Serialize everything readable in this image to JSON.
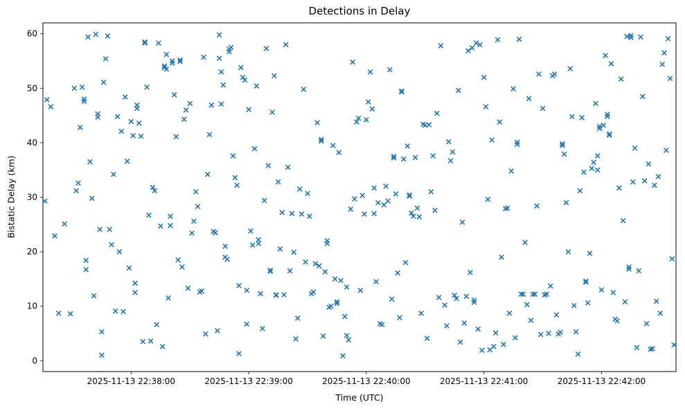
{
  "chart_data": {
    "type": "scatter",
    "title": "Detections in Delay",
    "xlabel": "Time (UTC)",
    "ylabel": "Bistatic Delay (km)",
    "marker": "x",
    "marker_color": "#1f77b4",
    "axis_color": "#000000",
    "background": "#ffffff",
    "grid": false,
    "legend": "none",
    "x_unit": "seconds after 2025-11-13 22:38:00",
    "xlim": [
      -45,
      278
    ],
    "ylim": [
      -2,
      62
    ],
    "x_ticks": [
      {
        "t": 0,
        "label": "2025-11-13 22:38:00"
      },
      {
        "t": 60,
        "label": "2025-11-13 22:39:00"
      },
      {
        "t": 120,
        "label": "2025-11-13 22:40:00"
      },
      {
        "t": 180,
        "label": "2025-11-13 22:41:00"
      },
      {
        "t": 240,
        "label": "2025-11-13 22:42:00"
      }
    ],
    "y_ticks": [
      0,
      10,
      20,
      30,
      40,
      50,
      60
    ],
    "points": [
      [
        -44,
        29.3
      ],
      [
        -43,
        47.9
      ],
      [
        -41,
        46.6
      ],
      [
        -39,
        22.9
      ],
      [
        -37,
        8.7
      ],
      [
        -34,
        25.1
      ],
      [
        -31,
        8.6
      ],
      [
        -29,
        50.0
      ],
      [
        -28,
        31.2
      ],
      [
        -27,
        32.6
      ],
      [
        -26,
        42.8
      ],
      [
        -25,
        50.2
      ],
      [
        -24,
        48.0
      ],
      [
        -24,
        47.6
      ],
      [
        -23,
        18.4
      ],
      [
        -23,
        16.7
      ],
      [
        -22,
        59.4
      ],
      [
        -21,
        36.5
      ],
      [
        -20,
        29.8
      ],
      [
        -19,
        11.9
      ],
      [
        -18,
        59.9
      ],
      [
        -17,
        45.3
      ],
      [
        -17,
        44.7
      ],
      [
        -16,
        24.1
      ],
      [
        -15,
        5.3
      ],
      [
        -15,
        1.0
      ],
      [
        -14,
        51.1
      ],
      [
        -13,
        55.4
      ],
      [
        -12,
        59.6
      ],
      [
        -11,
        24.1
      ],
      [
        -10,
        21.3
      ],
      [
        -9,
        34.2
      ],
      [
        -8,
        9.1
      ],
      [
        -7,
        44.8
      ],
      [
        -6,
        20.0
      ],
      [
        -5,
        42.1
      ],
      [
        -4,
        9.0
      ],
      [
        -3,
        48.4
      ],
      [
        -2,
        36.6
      ],
      [
        -1,
        17.0
      ],
      [
        0,
        43.9
      ],
      [
        1,
        41.3
      ],
      [
        2,
        12.5
      ],
      [
        2,
        14.2
      ],
      [
        3,
        46.9
      ],
      [
        3,
        46.3
      ],
      [
        4,
        43.6
      ],
      [
        5,
        41.2
      ],
      [
        6,
        3.5
      ],
      [
        7,
        58.5
      ],
      [
        7,
        58.3
      ],
      [
        8,
        50.2
      ],
      [
        9,
        26.7
      ],
      [
        10,
        3.6
      ],
      [
        11,
        31.8
      ],
      [
        12,
        31.2
      ],
      [
        13,
        6.6
      ],
      [
        14,
        58.3
      ],
      [
        15,
        24.7
      ],
      [
        16,
        2.6
      ],
      [
        17,
        53.8
      ],
      [
        17,
        54.1
      ],
      [
        18,
        56.2
      ],
      [
        18,
        53.5
      ],
      [
        19,
        11.5
      ],
      [
        20,
        26.5
      ],
      [
        20,
        24.8
      ],
      [
        21,
        55.0
      ],
      [
        21,
        54.6
      ],
      [
        22,
        48.8
      ],
      [
        23,
        41.1
      ],
      [
        24,
        18.5
      ],
      [
        25,
        55.2
      ],
      [
        25,
        54.9
      ],
      [
        26,
        17.2
      ],
      [
        27,
        44.3
      ],
      [
        28,
        46.0
      ],
      [
        29,
        13.3
      ],
      [
        30,
        47.2
      ],
      [
        31,
        23.4
      ],
      [
        32,
        25.6
      ],
      [
        33,
        31.0
      ],
      [
        34,
        28.3
      ],
      [
        35,
        12.6
      ],
      [
        36,
        12.8
      ],
      [
        37,
        55.7
      ],
      [
        38,
        4.9
      ],
      [
        39,
        34.2
      ],
      [
        40,
        41.5
      ],
      [
        41,
        46.9
      ],
      [
        42,
        23.7
      ],
      [
        43,
        23.5
      ],
      [
        44,
        5.5
      ],
      [
        45,
        59.8
      ],
      [
        45,
        55.5
      ],
      [
        46,
        53.0
      ],
      [
        46,
        47.1
      ],
      [
        47,
        50.6
      ],
      [
        48,
        21.0
      ],
      [
        48,
        19.0
      ],
      [
        49,
        18.6
      ],
      [
        50,
        57.2
      ],
      [
        50,
        56.7
      ],
      [
        51,
        57.5
      ],
      [
        52,
        37.6
      ],
      [
        53,
        33.6
      ],
      [
        54,
        32.2
      ],
      [
        55,
        13.8
      ],
      [
        55,
        1.3
      ],
      [
        56,
        53.8
      ],
      [
        57,
        52.0
      ],
      [
        58,
        51.5
      ],
      [
        59,
        6.7
      ],
      [
        59,
        12.9
      ],
      [
        60,
        46.1
      ],
      [
        61,
        23.8
      ],
      [
        62,
        21.2
      ],
      [
        63,
        38.9
      ],
      [
        64,
        50.4
      ],
      [
        65,
        21.5
      ],
      [
        65,
        22.2
      ],
      [
        66,
        12.3
      ],
      [
        67,
        5.9
      ],
      [
        68,
        29.4
      ],
      [
        69,
        57.3
      ],
      [
        70,
        35.8
      ],
      [
        71,
        16.4
      ],
      [
        71,
        16.6
      ],
      [
        72,
        45.6
      ],
      [
        73,
        52.3
      ],
      [
        74,
        12.1
      ],
      [
        74,
        12.0
      ],
      [
        75,
        32.8
      ],
      [
        76,
        20.5
      ],
      [
        77,
        27.2
      ],
      [
        78,
        12.1
      ],
      [
        79,
        58.0
      ],
      [
        80,
        35.5
      ],
      [
        81,
        16.5
      ],
      [
        82,
        27.0
      ],
      [
        83,
        19.9
      ],
      [
        84,
        4.0
      ],
      [
        85,
        7.8
      ],
      [
        86,
        31.5
      ],
      [
        87,
        26.9
      ],
      [
        88,
        49.8
      ],
      [
        89,
        18.1
      ],
      [
        90,
        30.7
      ],
      [
        91,
        26.5
      ],
      [
        92,
        12.3
      ],
      [
        93,
        12.6
      ],
      [
        94,
        17.8
      ],
      [
        95,
        43.7
      ],
      [
        96,
        17.4
      ],
      [
        97,
        40.6
      ],
      [
        97,
        40.3
      ],
      [
        98,
        4.5
      ],
      [
        99,
        16.3
      ],
      [
        100,
        21.5
      ],
      [
        100,
        22.0
      ],
      [
        101,
        9.8
      ],
      [
        102,
        10.0
      ],
      [
        103,
        39.5
      ],
      [
        104,
        15.0
      ],
      [
        105,
        10.5
      ],
      [
        105,
        10.8
      ],
      [
        106,
        38.2
      ],
      [
        107,
        14.7
      ],
      [
        108,
        0.9
      ],
      [
        109,
        8.1
      ],
      [
        110,
        13.5
      ],
      [
        110,
        4.6
      ],
      [
        111,
        3.8
      ],
      [
        112,
        27.8
      ],
      [
        113,
        54.8
      ],
      [
        114,
        29.7
      ],
      [
        115,
        43.8
      ],
      [
        116,
        44.5
      ],
      [
        117,
        12.9
      ],
      [
        118,
        30.3
      ],
      [
        119,
        26.9
      ],
      [
        120,
        44.2
      ],
      [
        121,
        47.5
      ],
      [
        122,
        53.0
      ],
      [
        123,
        46.2
      ],
      [
        124,
        31.7
      ],
      [
        124,
        27.0
      ],
      [
        125,
        14.5
      ],
      [
        126,
        29.0
      ],
      [
        127,
        6.8
      ],
      [
        128,
        6.6
      ],
      [
        129,
        28.6
      ],
      [
        130,
        32.0
      ],
      [
        131,
        29.3
      ],
      [
        132,
        53.4
      ],
      [
        133,
        11.3
      ],
      [
        134,
        37.5
      ],
      [
        134,
        37.2
      ],
      [
        135,
        30.6
      ],
      [
        136,
        16.1
      ],
      [
        137,
        7.9
      ],
      [
        138,
        49.3
      ],
      [
        138,
        49.5
      ],
      [
        139,
        37.0
      ],
      [
        140,
        18.0
      ],
      [
        141,
        39.4
      ],
      [
        142,
        30.4
      ],
      [
        142,
        30.2
      ],
      [
        143,
        27.1
      ],
      [
        144,
        26.5
      ],
      [
        145,
        37.3
      ],
      [
        146,
        28.0
      ],
      [
        147,
        26.4
      ],
      [
        148,
        8.7
      ],
      [
        149,
        43.4
      ],
      [
        150,
        43.2
      ],
      [
        151,
        4.1
      ],
      [
        152,
        43.3
      ],
      [
        153,
        31.0
      ],
      [
        154,
        37.6
      ],
      [
        155,
        27.6
      ],
      [
        156,
        45.4
      ],
      [
        157,
        11.6
      ],
      [
        158,
        57.8
      ],
      [
        160,
        10.2
      ],
      [
        161,
        6.4
      ],
      [
        162,
        40.2
      ],
      [
        163,
        36.7
      ],
      [
        164,
        38.3
      ],
      [
        165,
        12.0
      ],
      [
        166,
        11.4
      ],
      [
        167,
        49.6
      ],
      [
        168,
        3.4
      ],
      [
        169,
        25.4
      ],
      [
        170,
        6.9
      ],
      [
        171,
        11.8
      ],
      [
        172,
        56.9
      ],
      [
        173,
        16.2
      ],
      [
        174,
        57.4
      ],
      [
        175,
        11.1
      ],
      [
        175,
        10.7
      ],
      [
        176,
        58.3
      ],
      [
        177,
        5.8
      ],
      [
        178,
        58.0
      ],
      [
        179,
        1.9
      ],
      [
        180,
        52.0
      ],
      [
        181,
        46.6
      ],
      [
        182,
        29.6
      ],
      [
        183,
        2.0
      ],
      [
        184,
        40.5
      ],
      [
        185,
        2.6
      ],
      [
        186,
        5.1
      ],
      [
        187,
        58.9
      ],
      [
        188,
        43.8
      ],
      [
        189,
        19.0
      ],
      [
        190,
        3.0
      ],
      [
        191,
        27.9
      ],
      [
        192,
        28.0
      ],
      [
        193,
        8.7
      ],
      [
        194,
        34.8
      ],
      [
        195,
        49.9
      ],
      [
        196,
        4.2
      ],
      [
        197,
        40.1
      ],
      [
        197,
        39.7
      ],
      [
        198,
        59.0
      ],
      [
        199,
        12.2
      ],
      [
        200,
        12.2
      ],
      [
        201,
        21.7
      ],
      [
        202,
        10.3
      ],
      [
        203,
        48.1
      ],
      [
        204,
        7.4
      ],
      [
        205,
        12.2
      ],
      [
        206,
        12.2
      ],
      [
        207,
        28.4
      ],
      [
        208,
        52.6
      ],
      [
        209,
        4.8
      ],
      [
        210,
        46.3
      ],
      [
        211,
        12.1
      ],
      [
        211,
        12.1
      ],
      [
        212,
        12.2
      ],
      [
        213,
        5.0
      ],
      [
        214,
        13.7
      ],
      [
        215,
        52.3
      ],
      [
        216,
        52.6
      ],
      [
        217,
        8.4
      ],
      [
        218,
        4.9
      ],
      [
        219,
        5.2
      ],
      [
        220,
        39.8
      ],
      [
        220,
        39.5
      ],
      [
        221,
        37.9
      ],
      [
        222,
        29.0
      ],
      [
        223,
        20.0
      ],
      [
        224,
        53.6
      ],
      [
        225,
        44.8
      ],
      [
        226,
        10.1
      ],
      [
        227,
        5.3
      ],
      [
        228,
        1.2
      ],
      [
        229,
        31.2
      ],
      [
        230,
        44.6
      ],
      [
        231,
        34.6
      ],
      [
        232,
        14.4
      ],
      [
        232,
        14.6
      ],
      [
        233,
        10.6
      ],
      [
        234,
        19.7
      ],
      [
        235,
        35.3
      ],
      [
        236,
        36.4
      ],
      [
        237,
        47.2
      ],
      [
        238,
        35.0
      ],
      [
        238,
        37.6
      ],
      [
        239,
        43.0
      ],
      [
        239,
        42.6
      ],
      [
        240,
        13.0
      ],
      [
        241,
        43.2
      ],
      [
        242,
        56.0
      ],
      [
        243,
        45.2
      ],
      [
        243,
        44.8
      ],
      [
        244,
        41.6
      ],
      [
        244,
        41.4
      ],
      [
        245,
        54.5
      ],
      [
        246,
        12.5
      ],
      [
        247,
        7.6
      ],
      [
        248,
        7.3
      ],
      [
        249,
        31.7
      ],
      [
        250,
        51.7
      ],
      [
        251,
        25.7
      ],
      [
        252,
        10.8
      ],
      [
        253,
        59.5
      ],
      [
        254,
        17.2
      ],
      [
        254,
        16.8
      ],
      [
        255,
        59.3
      ],
      [
        255,
        59.7
      ],
      [
        256,
        32.8
      ],
      [
        257,
        39.0
      ],
      [
        258,
        2.4
      ],
      [
        259,
        16.5
      ],
      [
        260,
        59.4
      ],
      [
        261,
        48.5
      ],
      [
        262,
        33.0
      ],
      [
        263,
        6.8
      ],
      [
        264,
        36.1
      ],
      [
        265,
        2.1
      ],
      [
        266,
        2.2
      ],
      [
        267,
        32.2
      ],
      [
        268,
        10.9
      ],
      [
        269,
        33.8
      ],
      [
        270,
        8.7
      ],
      [
        271,
        54.4
      ],
      [
        272,
        56.5
      ],
      [
        273,
        38.6
      ],
      [
        274,
        59.1
      ],
      [
        275,
        51.8
      ],
      [
        276,
        18.7
      ],
      [
        277,
        2.9
      ]
    ]
  }
}
